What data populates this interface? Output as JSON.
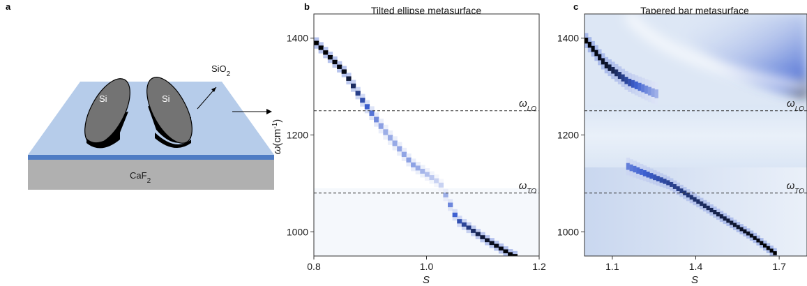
{
  "panel_a": {
    "letter": "a",
    "materials": {
      "si_left": "Si",
      "si_right": "Si",
      "sio2": "SiO",
      "sio2_sub": "2",
      "caf2": "CaF",
      "caf2_sub": "2"
    },
    "colors": {
      "substrate": "#b0b0b0",
      "film": "#4f7cc4",
      "top_face": "#b6ccea",
      "si_top": "#737373",
      "si_body": "#000000"
    }
  },
  "chart_data": [
    {
      "id": "b",
      "type": "heatmap",
      "letter": "b",
      "title": "Tilted ellipse metasurface",
      "xlabel": "S",
      "ylabel_main": "ω",
      "ylabel_unit": "(cm",
      "ylabel_exp": "-1",
      "ylabel_close": ")",
      "xlim": [
        0.8,
        1.2
      ],
      "ylim": [
        950,
        1450
      ],
      "xticks": [
        {
          "value": 0.8,
          "label": "0.8"
        },
        {
          "value": 1.0,
          "label": "1.0"
        },
        {
          "value": 1.2,
          "label": "1.2"
        }
      ],
      "yticks": [
        {
          "value": 1000,
          "label": "1000"
        },
        {
          "value": 1200,
          "label": "1200"
        },
        {
          "value": 1400,
          "label": "1400"
        }
      ],
      "hlines": [
        {
          "value": 1250,
          "label_main": "ω",
          "label_sub": "LO"
        },
        {
          "value": 1080,
          "label_main": "ω",
          "label_sub": "TO"
        }
      ],
      "colormap": [
        "#ffffff",
        "#3c5fd0",
        "#000000"
      ],
      "resonance": {
        "description_free_points": true,
        "points": [
          {
            "x": 0.8,
            "y": 1390,
            "intensity": 1.0,
            "width": 9
          },
          {
            "x": 0.85,
            "y": 1330,
            "intensity": 0.95,
            "width": 9
          },
          {
            "x": 0.88,
            "y": 1275,
            "intensity": 0.6,
            "width": 10
          },
          {
            "x": 0.92,
            "y": 1210,
            "intensity": 0.25,
            "width": 12
          },
          {
            "x": 0.97,
            "y": 1140,
            "intensity": 0.3,
            "width": 10
          },
          {
            "x": 1.02,
            "y": 1100,
            "intensity": 0.12,
            "width": 10
          },
          {
            "x": 1.05,
            "y": 1025,
            "intensity": 0.55,
            "width": 9
          },
          {
            "x": 1.1,
            "y": 985,
            "intensity": 0.9,
            "width": 8
          },
          {
            "x": 1.15,
            "y": 950,
            "intensity": 1.0,
            "width": 8
          }
        ]
      }
    },
    {
      "id": "c",
      "type": "heatmap",
      "letter": "c",
      "title": "Tapered bar metasurface",
      "xlabel": "S",
      "xlim": [
        1.0,
        1.8
      ],
      "ylim": [
        950,
        1450
      ],
      "xticks": [
        {
          "value": 1.1,
          "label": "1.1"
        },
        {
          "value": 1.4,
          "label": "1.4"
        },
        {
          "value": 1.7,
          "label": "1.7"
        }
      ],
      "yticks": [
        {
          "value": 1000,
          "label": "1000"
        },
        {
          "value": 1200,
          "label": "1200"
        },
        {
          "value": 1400,
          "label": "1400"
        }
      ],
      "hlines": [
        {
          "value": 1250,
          "label_main": "ω",
          "label_sub": "LO"
        },
        {
          "value": 1080,
          "label_main": "ω",
          "label_sub": "TO"
        }
      ],
      "colormap": [
        "#ffffff",
        "#3c5fd0",
        "#000000"
      ],
      "resonance_upper": {
        "points": [
          {
            "x": 1.0,
            "y": 1395,
            "intensity": 1.0,
            "width": 12
          },
          {
            "x": 1.07,
            "y": 1345,
            "intensity": 0.9,
            "width": 13
          },
          {
            "x": 1.15,
            "y": 1310,
            "intensity": 0.6,
            "width": 15
          },
          {
            "x": 1.25,
            "y": 1285,
            "intensity": 0.25,
            "width": 18
          }
        ]
      },
      "resonance_lower": {
        "points": [
          {
            "x": 1.15,
            "y": 1135,
            "intensity": 0.4,
            "width": 14
          },
          {
            "x": 1.3,
            "y": 1100,
            "intensity": 0.65,
            "width": 10
          },
          {
            "x": 1.45,
            "y": 1045,
            "intensity": 0.8,
            "width": 9
          },
          {
            "x": 1.6,
            "y": 990,
            "intensity": 0.95,
            "width": 8
          },
          {
            "x": 1.68,
            "y": 955,
            "intensity": 1.0,
            "width": 8
          }
        ]
      }
    }
  ]
}
